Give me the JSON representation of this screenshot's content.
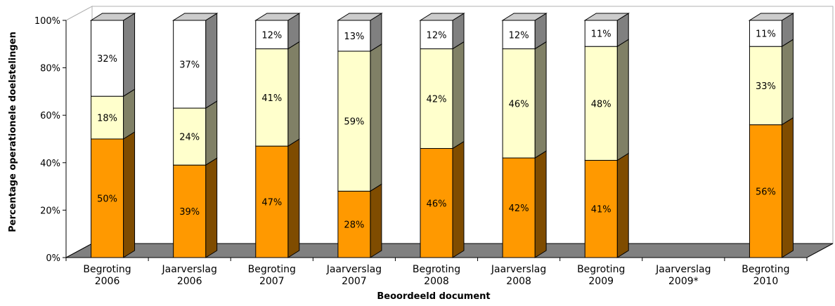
{
  "chart_data": {
    "type": "bar",
    "stacked": true,
    "three_d": true,
    "title": "",
    "xlabel": "Beoordeeld document",
    "ylabel": "Percentage operationele doelstelingen",
    "ylim": [
      0,
      100
    ],
    "y_ticks": [
      "0%",
      "20%",
      "40%",
      "60%",
      "80%",
      "100%"
    ],
    "grid": false,
    "legend": "none",
    "categories": [
      [
        "Begroting",
        "2006"
      ],
      [
        "Jaarverslag",
        "2006"
      ],
      [
        "Begroting",
        "2007"
      ],
      [
        "Jaarverslag",
        "2007"
      ],
      [
        "Begroting",
        "2008"
      ],
      [
        "Jaarverslag",
        "2008"
      ],
      [
        "Begroting",
        "2009"
      ],
      [
        "Jaarverslag",
        "2009*"
      ],
      [
        "Begroting",
        "2010"
      ]
    ],
    "series": [
      {
        "values": [
          50,
          39,
          47,
          28,
          46,
          42,
          41,
          null,
          56
        ],
        "labels": [
          "50%",
          "39%",
          "47%",
          "28%",
          "46%",
          "42%",
          "41%",
          "",
          "56%"
        ],
        "color": "#FF9900",
        "side_color": "#7F4C00",
        "top_color": "#CC7A00"
      },
      {
        "values": [
          18,
          24,
          41,
          59,
          42,
          46,
          48,
          null,
          33
        ],
        "labels": [
          "18%",
          "24%",
          "41%",
          "59%",
          "42%",
          "46%",
          "48%",
          "",
          "33%"
        ],
        "color": "#FFFFCC",
        "side_color": "#808066",
        "top_color": "#CCCCA3"
      },
      {
        "values": [
          32,
          37,
          12,
          13,
          12,
          12,
          11,
          null,
          11
        ],
        "labels": [
          "32%",
          "37%",
          "12%",
          "13%",
          "12%",
          "12%",
          "11%",
          "",
          "11%"
        ],
        "color": "#FFFFFF",
        "side_color": "#808080",
        "top_color": "#CCCCCC"
      }
    ],
    "floor_color": "#808080",
    "wall_color": "#FFFFFF"
  }
}
